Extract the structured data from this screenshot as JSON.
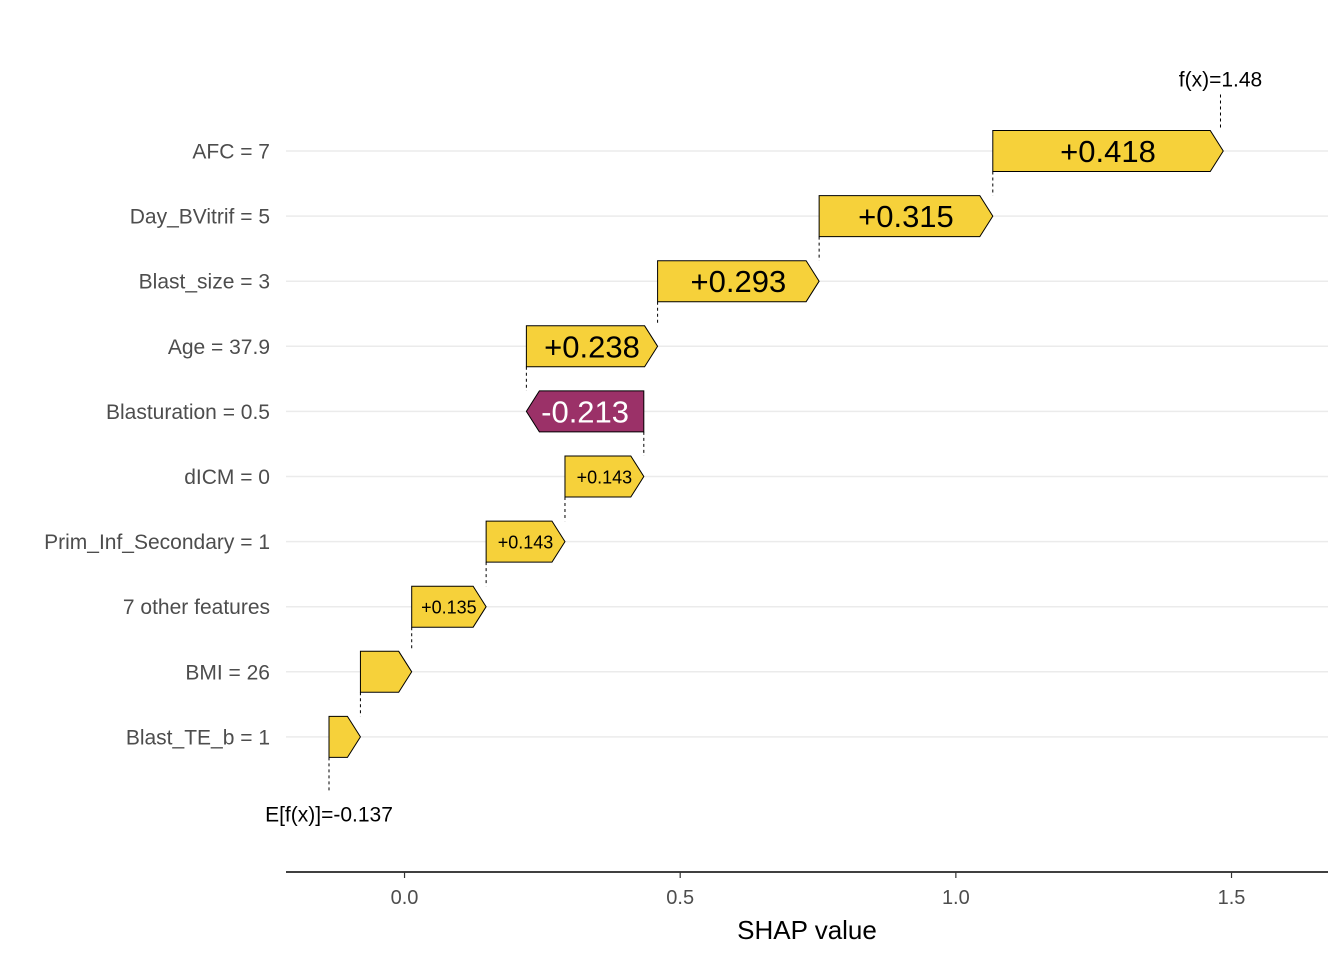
{
  "chart_data": {
    "type": "waterfall",
    "title": "",
    "xlabel": "SHAP value",
    "ylabel": "",
    "xlim": [
      -0.215,
      1.675
    ],
    "x_ticks": [
      0.0,
      0.5,
      1.0,
      1.5
    ],
    "x_tick_labels": [
      "0.0",
      "0.5",
      "1.0",
      "1.5"
    ],
    "base_value": -0.137,
    "base_label": "E[f(x)]=-0.137",
    "final_value": 1.48,
    "final_label": "f(x)=1.48",
    "colors": {
      "positive": "#f6d13a",
      "negative": "#9b3168",
      "positive_text": "#000000",
      "negative_text": "#ffffff"
    },
    "features": [
      {
        "label": "AFC = 7",
        "value": 0.418,
        "value_label": "+0.418",
        "label_size": "large"
      },
      {
        "label": "Day_BVitrif = 5",
        "value": 0.315,
        "value_label": "+0.315",
        "label_size": "large"
      },
      {
        "label": "Blast_size = 3",
        "value": 0.293,
        "value_label": "+0.293",
        "label_size": "large"
      },
      {
        "label": "Age = 37.9",
        "value": 0.238,
        "value_label": "+0.238",
        "label_size": "large"
      },
      {
        "label": "Blasturation = 0.5",
        "value": -0.213,
        "value_label": "-0.213",
        "label_size": "large"
      },
      {
        "label": "dICM = 0",
        "value": 0.143,
        "value_label": "+0.143",
        "label_size": "small"
      },
      {
        "label": "Prim_Inf_Secondary = 1",
        "value": 0.143,
        "value_label": "+0.143",
        "label_size": "small"
      },
      {
        "label": "7 other features",
        "value": 0.135,
        "value_label": "+0.135",
        "label_size": "small"
      },
      {
        "label": "BMI = 26",
        "value": 0.093,
        "value_label": "",
        "label_size": "none"
      },
      {
        "label": "Blast_TE_b = 1",
        "value": 0.057,
        "value_label": "",
        "label_size": "none"
      }
    ]
  }
}
